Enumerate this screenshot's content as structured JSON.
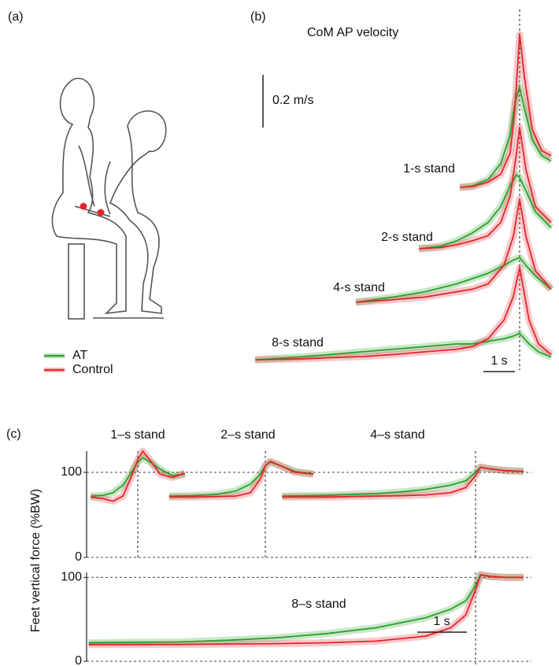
{
  "panel_a": {
    "label": "(a)"
  },
  "chart_data": [
    {
      "type": "line",
      "panel": "(b)",
      "title": "CoM AP velocity",
      "y_scale_bar": {
        "value": 0.2,
        "label": "0.2 m/s"
      },
      "x_scale_bar": {
        "value": 1,
        "label": "1 s"
      },
      "trials": [
        {
          "name": "1-s stand",
          "x": [
            -1.9,
            -1.5,
            -1,
            -0.6,
            -0.3,
            -0.15,
            0,
            0.15,
            0.4,
            0.7,
            1.0
          ],
          "series": [
            {
              "name": "AT",
              "color": "#2ca02c",
              "values": [
                0,
                0.005,
                0.03,
                0.09,
                0.2,
                0.32,
                0.38,
                0.3,
                0.18,
                0.12,
                0.1
              ]
            },
            {
              "name": "Control",
              "color": "#e3262e",
              "values": [
                0,
                0.003,
                0.02,
                0.05,
                0.13,
                0.3,
                0.58,
                0.42,
                0.22,
                0.14,
                0.12
              ]
            }
          ]
        },
        {
          "name": "2-s stand",
          "x": [
            -3.2,
            -2.5,
            -2,
            -1.5,
            -1,
            -0.6,
            -0.3,
            -0.1,
            0,
            0.2,
            0.5,
            1.0
          ],
          "series": [
            {
              "name": "AT",
              "color": "#2ca02c",
              "values": [
                0,
                0.01,
                0.03,
                0.06,
                0.1,
                0.16,
                0.24,
                0.28,
                0.27,
                0.22,
                0.14,
                0.08
              ]
            },
            {
              "name": "Control",
              "color": "#e3262e",
              "values": [
                0,
                0.005,
                0.015,
                0.03,
                0.05,
                0.1,
                0.2,
                0.36,
                0.46,
                0.3,
                0.16,
                0.1
              ]
            }
          ]
        },
        {
          "name": "4-s stand",
          "x": [
            -5.2,
            -4,
            -3,
            -2,
            -1.5,
            -1,
            -0.5,
            -0.2,
            0,
            0.2,
            0.5,
            1.0
          ],
          "series": [
            {
              "name": "AT",
              "color": "#2ca02c",
              "values": [
                0,
                0.02,
                0.04,
                0.07,
                0.09,
                0.11,
                0.14,
                0.16,
                0.17,
                0.14,
                0.1,
                0.05
              ]
            },
            {
              "name": "Control",
              "color": "#e3262e",
              "values": [
                0,
                0.01,
                0.02,
                0.04,
                0.05,
                0.07,
                0.14,
                0.25,
                0.39,
                0.25,
                0.12,
                0.05
              ]
            }
          ]
        },
        {
          "name": "8-s stand",
          "x": [
            -8.4,
            -7,
            -6,
            -5,
            -4,
            -3,
            -2,
            -1.5,
            -1,
            -0.5,
            -0.2,
            0,
            0.3,
            0.6,
            1.0
          ],
          "series": [
            {
              "name": "AT",
              "color": "#2ca02c",
              "values": [
                0,
                0.01,
                0.02,
                0.03,
                0.04,
                0.05,
                0.06,
                0.06,
                0.07,
                0.08,
                0.09,
                0.1,
                0.06,
                0.03,
                0.01
              ]
            },
            {
              "name": "Control",
              "color": "#e3262e",
              "values": [
                0,
                0.003,
                0.008,
                0.012,
                0.02,
                0.03,
                0.04,
                0.05,
                0.08,
                0.15,
                0.24,
                0.35,
                0.15,
                0.06,
                0.02
              ]
            }
          ]
        }
      ]
    },
    {
      "type": "line",
      "panel": "(c)",
      "ylabel": "Feet vertical force (%BW)",
      "ylim": [
        0,
        125
      ],
      "yticks": [
        0,
        100
      ],
      "grid": true,
      "trials": [
        {
          "name": "1–s stand",
          "x": [
            -0.95,
            -0.7,
            -0.5,
            -0.3,
            -0.15,
            0,
            0.1,
            0.25,
            0.45,
            0.7,
            0.95
          ],
          "series": [
            {
              "name": "AT",
              "color": "#2ca02c",
              "values": [
                72,
                73,
                76,
                85,
                98,
                112,
                117,
                112,
                104,
                96,
                98
              ]
            },
            {
              "name": "Control",
              "color": "#e3262e",
              "values": [
                71,
                69,
                66,
                72,
                92,
                115,
                125,
                114,
                98,
                94,
                99
              ]
            }
          ]
        },
        {
          "name": "2–s stand",
          "x": [
            -1.94,
            -1.5,
            -1,
            -0.6,
            -0.3,
            -0.1,
            0,
            0.1,
            0.3,
            0.6,
            0.97
          ],
          "series": [
            {
              "name": "AT",
              "color": "#2ca02c",
              "values": [
                72,
                72.5,
                74,
                78,
                86,
                98,
                108,
                112,
                108,
                101,
                98
              ]
            },
            {
              "name": "Control",
              "color": "#e3262e",
              "values": [
                71,
                71,
                71.5,
                72,
                76,
                92,
                108,
                113,
                108,
                100,
                98
              ]
            }
          ]
        },
        {
          "name": "4–s stand",
          "x": [
            -3.9,
            -3,
            -2,
            -1.5,
            -1,
            -0.5,
            -0.2,
            0,
            0.1,
            0.3,
            0.6,
            0.97
          ],
          "series": [
            {
              "name": "AT",
              "color": "#2ca02c",
              "values": [
                72,
                73,
                75,
                77,
                80,
                85,
                90,
                100,
                106,
                104,
                102,
                101
              ]
            },
            {
              "name": "Control",
              "color": "#e3262e",
              "values": [
                71,
                71,
                72,
                72.5,
                73.5,
                76,
                82,
                96,
                106,
                104,
                102,
                101
              ]
            }
          ]
        }
      ]
    },
    {
      "type": "line",
      "ylim": [
        0,
        106
      ],
      "yticks": [
        0,
        100
      ],
      "grid": true,
      "x_scale_bar": {
        "value": 1,
        "label": "1 s"
      },
      "trials": [
        {
          "name": "8–s stand",
          "x": [
            -7.8,
            -6,
            -5,
            -4,
            -3,
            -2,
            -1,
            -0.5,
            -0.2,
            0,
            0.1,
            0.3,
            0.6,
            0.97
          ],
          "series": [
            {
              "name": "AT",
              "color": "#2ca02c",
              "values": [
                22,
                23,
                25,
                28,
                33,
                40,
                52,
                62,
                72,
                90,
                103,
                101,
                100,
                100
              ]
            },
            {
              "name": "Control",
              "color": "#e3262e",
              "values": [
                20,
                20,
                20.5,
                21,
                22,
                24,
                30,
                40,
                55,
                85,
                103,
                101,
                100,
                100
              ]
            }
          ]
        }
      ]
    }
  ]
}
